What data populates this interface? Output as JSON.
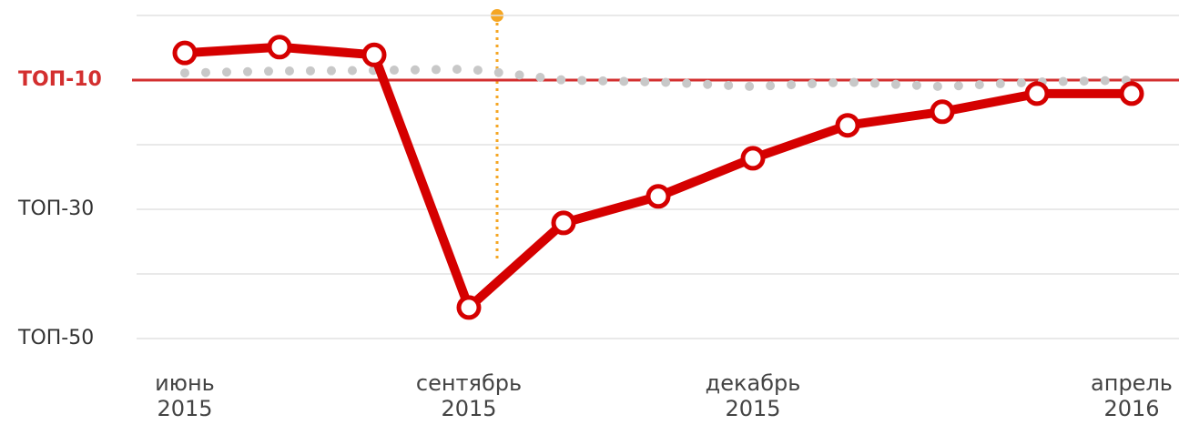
{
  "chart_data": {
    "type": "line",
    "categories": [
      [
        "июнь",
        "2015"
      ],
      null,
      null,
      [
        "сентябрь",
        "2015"
      ],
      null,
      null,
      [
        "декабрь",
        "2015"
      ],
      null,
      null,
      null,
      [
        "апрель",
        "2016"
      ]
    ],
    "series": [
      {
        "color": "#c8c8c8",
        "style": "dotted",
        "values": [
          8.9,
          8.6,
          8.5,
          8.3,
          10,
          10.3,
          11,
          10.3,
          11,
          10.3,
          10
        ]
      },
      {
        "color": "#d50000",
        "style": "solid",
        "values": [
          5.8,
          4.9,
          6.1,
          45.2,
          32.1,
          28.0,
          22.1,
          17.0,
          14.9,
          12.1,
          12.1
        ]
      }
    ],
    "ylim": [
      0,
      50
    ],
    "y_inverted": true,
    "yticks": [
      {
        "value": 10,
        "label": "ТОП-10"
      },
      {
        "value": 30,
        "label": "ТОП-30"
      },
      {
        "value": 50,
        "label": "ТОП-50"
      }
    ],
    "grid_values": [
      0,
      10,
      20,
      30,
      40,
      50
    ],
    "highlight_value": 10,
    "highlight_color": "#d32f2f",
    "grid": true
  }
}
